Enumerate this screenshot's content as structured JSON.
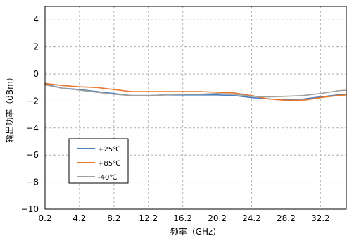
{
  "chart_data": {
    "type": "line",
    "title": "",
    "xlabel": "频率（GHz）",
    "ylabel": "输出功率（dBm）",
    "xlim": [
      0.2,
      35.2
    ],
    "ylim": [
      -10,
      5
    ],
    "x_ticks": [
      "0.2",
      "4.2",
      "8.2",
      "12.2",
      "16.2",
      "20.2",
      "24.2",
      "28.2",
      "32.2"
    ],
    "y_ticks": [
      "4",
      "2",
      "0",
      "−2",
      "−4",
      "−6",
      "−8",
      "−10"
    ],
    "grid": "dashed",
    "legend_position": "bottom-left",
    "series": [
      {
        "name": "+25℃",
        "color": "#4a7ebb",
        "x": [
          0.2,
          2.2,
          4.2,
          6.2,
          8.2,
          10.2,
          12.2,
          14.2,
          16.2,
          18.2,
          20.2,
          22.2,
          24.2,
          26.2,
          28.2,
          30.2,
          32.2,
          34.2,
          35.2
        ],
        "y": [
          -0.75,
          -1.05,
          -1.15,
          -1.3,
          -1.45,
          -1.6,
          -1.6,
          -1.55,
          -1.55,
          -1.55,
          -1.55,
          -1.6,
          -1.75,
          -1.85,
          -1.9,
          -1.85,
          -1.7,
          -1.55,
          -1.5
        ]
      },
      {
        "name": "+85℃",
        "color": "#e8782f",
        "x": [
          0.2,
          2.2,
          4.2,
          6.2,
          8.2,
          10.2,
          12.2,
          14.2,
          16.2,
          18.2,
          20.2,
          22.2,
          24.2,
          26.2,
          28.2,
          30.2,
          32.2,
          34.2,
          35.2
        ],
        "y": [
          -0.7,
          -0.85,
          -0.95,
          -1.0,
          -1.15,
          -1.3,
          -1.3,
          -1.3,
          -1.3,
          -1.3,
          -1.35,
          -1.4,
          -1.6,
          -1.85,
          -1.95,
          -1.95,
          -1.75,
          -1.6,
          -1.55
        ]
      },
      {
        "name": "-40℃",
        "color": "#a0a0a0",
        "x": [
          0.2,
          2.2,
          4.2,
          6.2,
          8.2,
          10.2,
          12.2,
          14.2,
          16.2,
          18.2,
          20.2,
          22.2,
          24.2,
          26.2,
          28.2,
          30.2,
          32.2,
          34.2,
          35.2
        ],
        "y": [
          -0.8,
          -1.05,
          -1.2,
          -1.35,
          -1.5,
          -1.6,
          -1.6,
          -1.55,
          -1.5,
          -1.5,
          -1.45,
          -1.5,
          -1.65,
          -1.7,
          -1.65,
          -1.6,
          -1.45,
          -1.25,
          -1.2
        ]
      }
    ]
  }
}
